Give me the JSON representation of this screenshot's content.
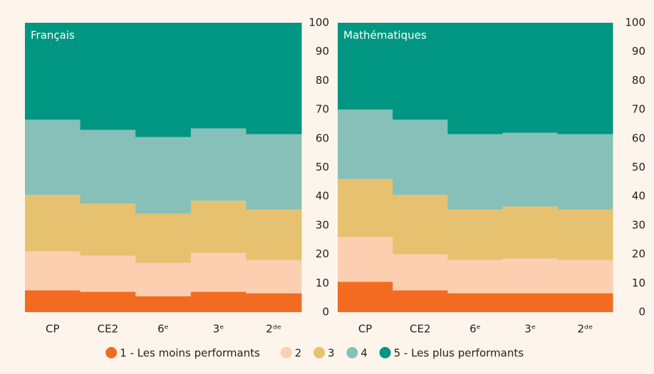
{
  "chart_data": [
    {
      "type": "stacked_bar",
      "title": "Français",
      "categories": [
        "CP",
        "CE2",
        "6ᵉ",
        "3ᵉ",
        "2ᵈᵉ"
      ],
      "series": [
        {
          "name": "1 - Les moins performants",
          "color": "#f26b21",
          "values": [
            7.5,
            7,
            5.5,
            7,
            6.5
          ]
        },
        {
          "name": "2",
          "color": "#fbcfb0",
          "values": [
            13.5,
            12.5,
            11.5,
            13.5,
            11.5
          ]
        },
        {
          "name": "3",
          "color": "#e6c270",
          "values": [
            19.5,
            18,
            17,
            18,
            17.5
          ]
        },
        {
          "name": "4",
          "color": "#87c0b8",
          "values": [
            26,
            25.5,
            26.5,
            25,
            26
          ]
        },
        {
          "name": "5 - Les plus performants",
          "color": "#009681",
          "values": [
            33.5,
            37,
            39.5,
            36.5,
            38.5
          ]
        }
      ],
      "ylim": [
        0,
        100
      ],
      "yticks": [
        0,
        10,
        20,
        30,
        40,
        50,
        60,
        70,
        80,
        90,
        100
      ]
    },
    {
      "type": "stacked_bar",
      "title": "Mathématiques",
      "categories": [
        "CP",
        "CE2",
        "6ᵉ",
        "3ᵉ",
        "2ᵈᵉ"
      ],
      "series": [
        {
          "color": "#f26b21",
          "values": [
            10.5,
            7.5,
            6.5,
            6.5,
            6.5
          ]
        },
        {
          "color": "#fbcfb0",
          "values": [
            15.5,
            12.5,
            11.5,
            12,
            11.5
          ]
        },
        {
          "color": "#e6c270",
          "values": [
            20,
            20.5,
            17.5,
            18,
            17.5
          ]
        },
        {
          "color": "#87c0b8",
          "values": [
            24,
            26,
            26,
            25.5,
            26
          ]
        },
        {
          "color": "#009681",
          "values": [
            30,
            33.5,
            38.5,
            38,
            38.5
          ]
        }
      ],
      "ylim": [
        0,
        100
      ],
      "yticks": [
        0,
        10,
        20,
        30,
        40,
        50,
        60,
        70,
        80,
        90,
        100
      ]
    }
  ]
}
